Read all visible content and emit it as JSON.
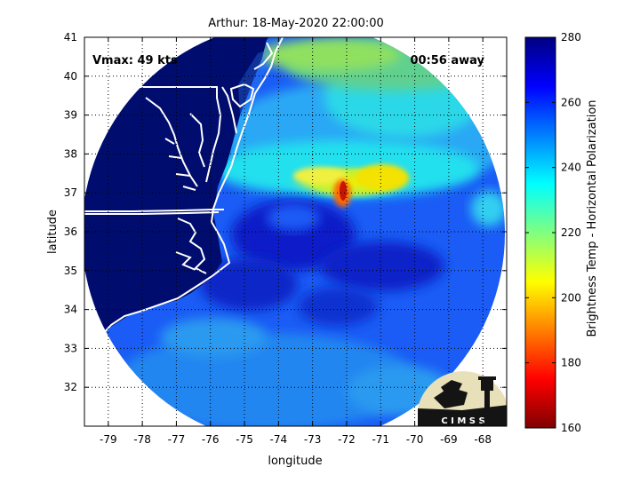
{
  "figure": {
    "title": "Arthur: 18-May-2020 22:00:00",
    "vmax_label": "Vmax: 49 kts",
    "time_label": "00:56 away",
    "xlabel": "longitude",
    "ylabel": "latitude",
    "logo_text": "C I M S S"
  },
  "colorbar": {
    "label": "Brightness Temp - Horizontal Polarization",
    "ticks": [
      "160",
      "180",
      "200",
      "220",
      "240",
      "260",
      "280"
    ],
    "range": [
      160,
      280
    ]
  },
  "chart_data": {
    "type": "heatmap",
    "title": "Arthur: 18-May-2020 22:00:00",
    "xlabel": "longitude",
    "ylabel": "latitude",
    "xlim": [
      -79.7,
      -67.3
    ],
    "ylim": [
      31,
      41
    ],
    "xticks": [
      "-79",
      "-78",
      "-77",
      "-76",
      "-75",
      "-74",
      "-73",
      "-72",
      "-71",
      "-70",
      "-69",
      "-68"
    ],
    "yticks": [
      "32",
      "33",
      "34",
      "35",
      "36",
      "37",
      "38",
      "39",
      "40",
      "41"
    ],
    "grid": true,
    "value_range": [
      160,
      280
    ],
    "colormap": "jet",
    "swath_center": [
      -73.6,
      35.9
    ],
    "storm_center": [
      -72.1,
      36.9
    ],
    "storm_min_brightness_temp": 175,
    "annotations": [
      "Vmax: 49 kts",
      "00:56 away"
    ]
  },
  "colors": {
    "land": "#000d6e",
    "coast": "#ffffff",
    "grid": "#000000",
    "background": "#ffffff"
  }
}
